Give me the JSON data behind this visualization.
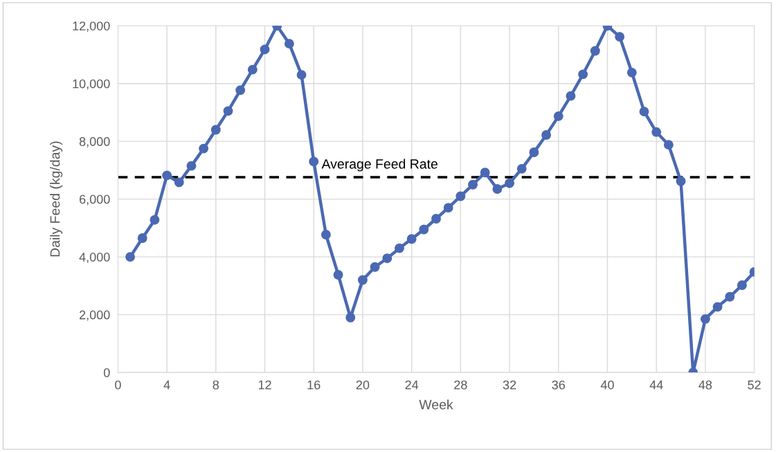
{
  "chart_data": {
    "type": "line",
    "xlabel": "Week",
    "ylabel": "Daily Feed (kg/day)",
    "x": [
      1,
      2,
      3,
      4,
      5,
      6,
      7,
      8,
      9,
      10,
      11,
      12,
      13,
      14,
      15,
      16,
      17,
      18,
      19,
      20,
      21,
      22,
      23,
      24,
      25,
      26,
      27,
      28,
      29,
      30,
      31,
      32,
      33,
      34,
      35,
      36,
      37,
      38,
      39,
      40,
      41,
      42,
      43,
      44,
      45,
      46,
      47,
      48,
      49,
      50,
      51,
      52
    ],
    "series": [
      {
        "color": "#4a69b2",
        "values": [
          4000,
          4650,
          5280,
          6820,
          6580,
          7150,
          7750,
          8400,
          9050,
          9770,
          10480,
          11180,
          12000,
          11380,
          10300,
          7300,
          4770,
          3380,
          1900,
          3200,
          3650,
          3950,
          4300,
          4620,
          4950,
          5320,
          5700,
          6100,
          6500,
          6920,
          6350,
          6550,
          7050,
          7620,
          8220,
          8870,
          9570,
          10320,
          11130,
          12000,
          11620,
          10380,
          9030,
          8320,
          7880,
          6620,
          0,
          1850,
          2270,
          2620,
          3020,
          3480
        ]
      }
    ],
    "xlim": [
      0,
      52
    ],
    "xticks": [
      0,
      4,
      8,
      12,
      16,
      20,
      24,
      28,
      32,
      36,
      40,
      44,
      48,
      52
    ],
    "ylim": [
      0,
      12000
    ],
    "yticks": [
      {
        "value": 0,
        "label": "0"
      },
      {
        "value": 2000,
        "label": "2,000"
      },
      {
        "value": 4000,
        "label": "4,000"
      },
      {
        "value": 6000,
        "label": "6,000"
      },
      {
        "value": 8000,
        "label": "8,000"
      },
      {
        "value": 10000,
        "label": "10,000"
      },
      {
        "value": 12000,
        "label": "12,000"
      }
    ],
    "ref_lines": [
      {
        "axis": "y",
        "value": 6760,
        "label": "Average Feed Rate",
        "color": "#000000",
        "line_style": "dashed"
      }
    ],
    "grid": true,
    "marker": "circle",
    "line_style": "solid",
    "legend": false
  }
}
